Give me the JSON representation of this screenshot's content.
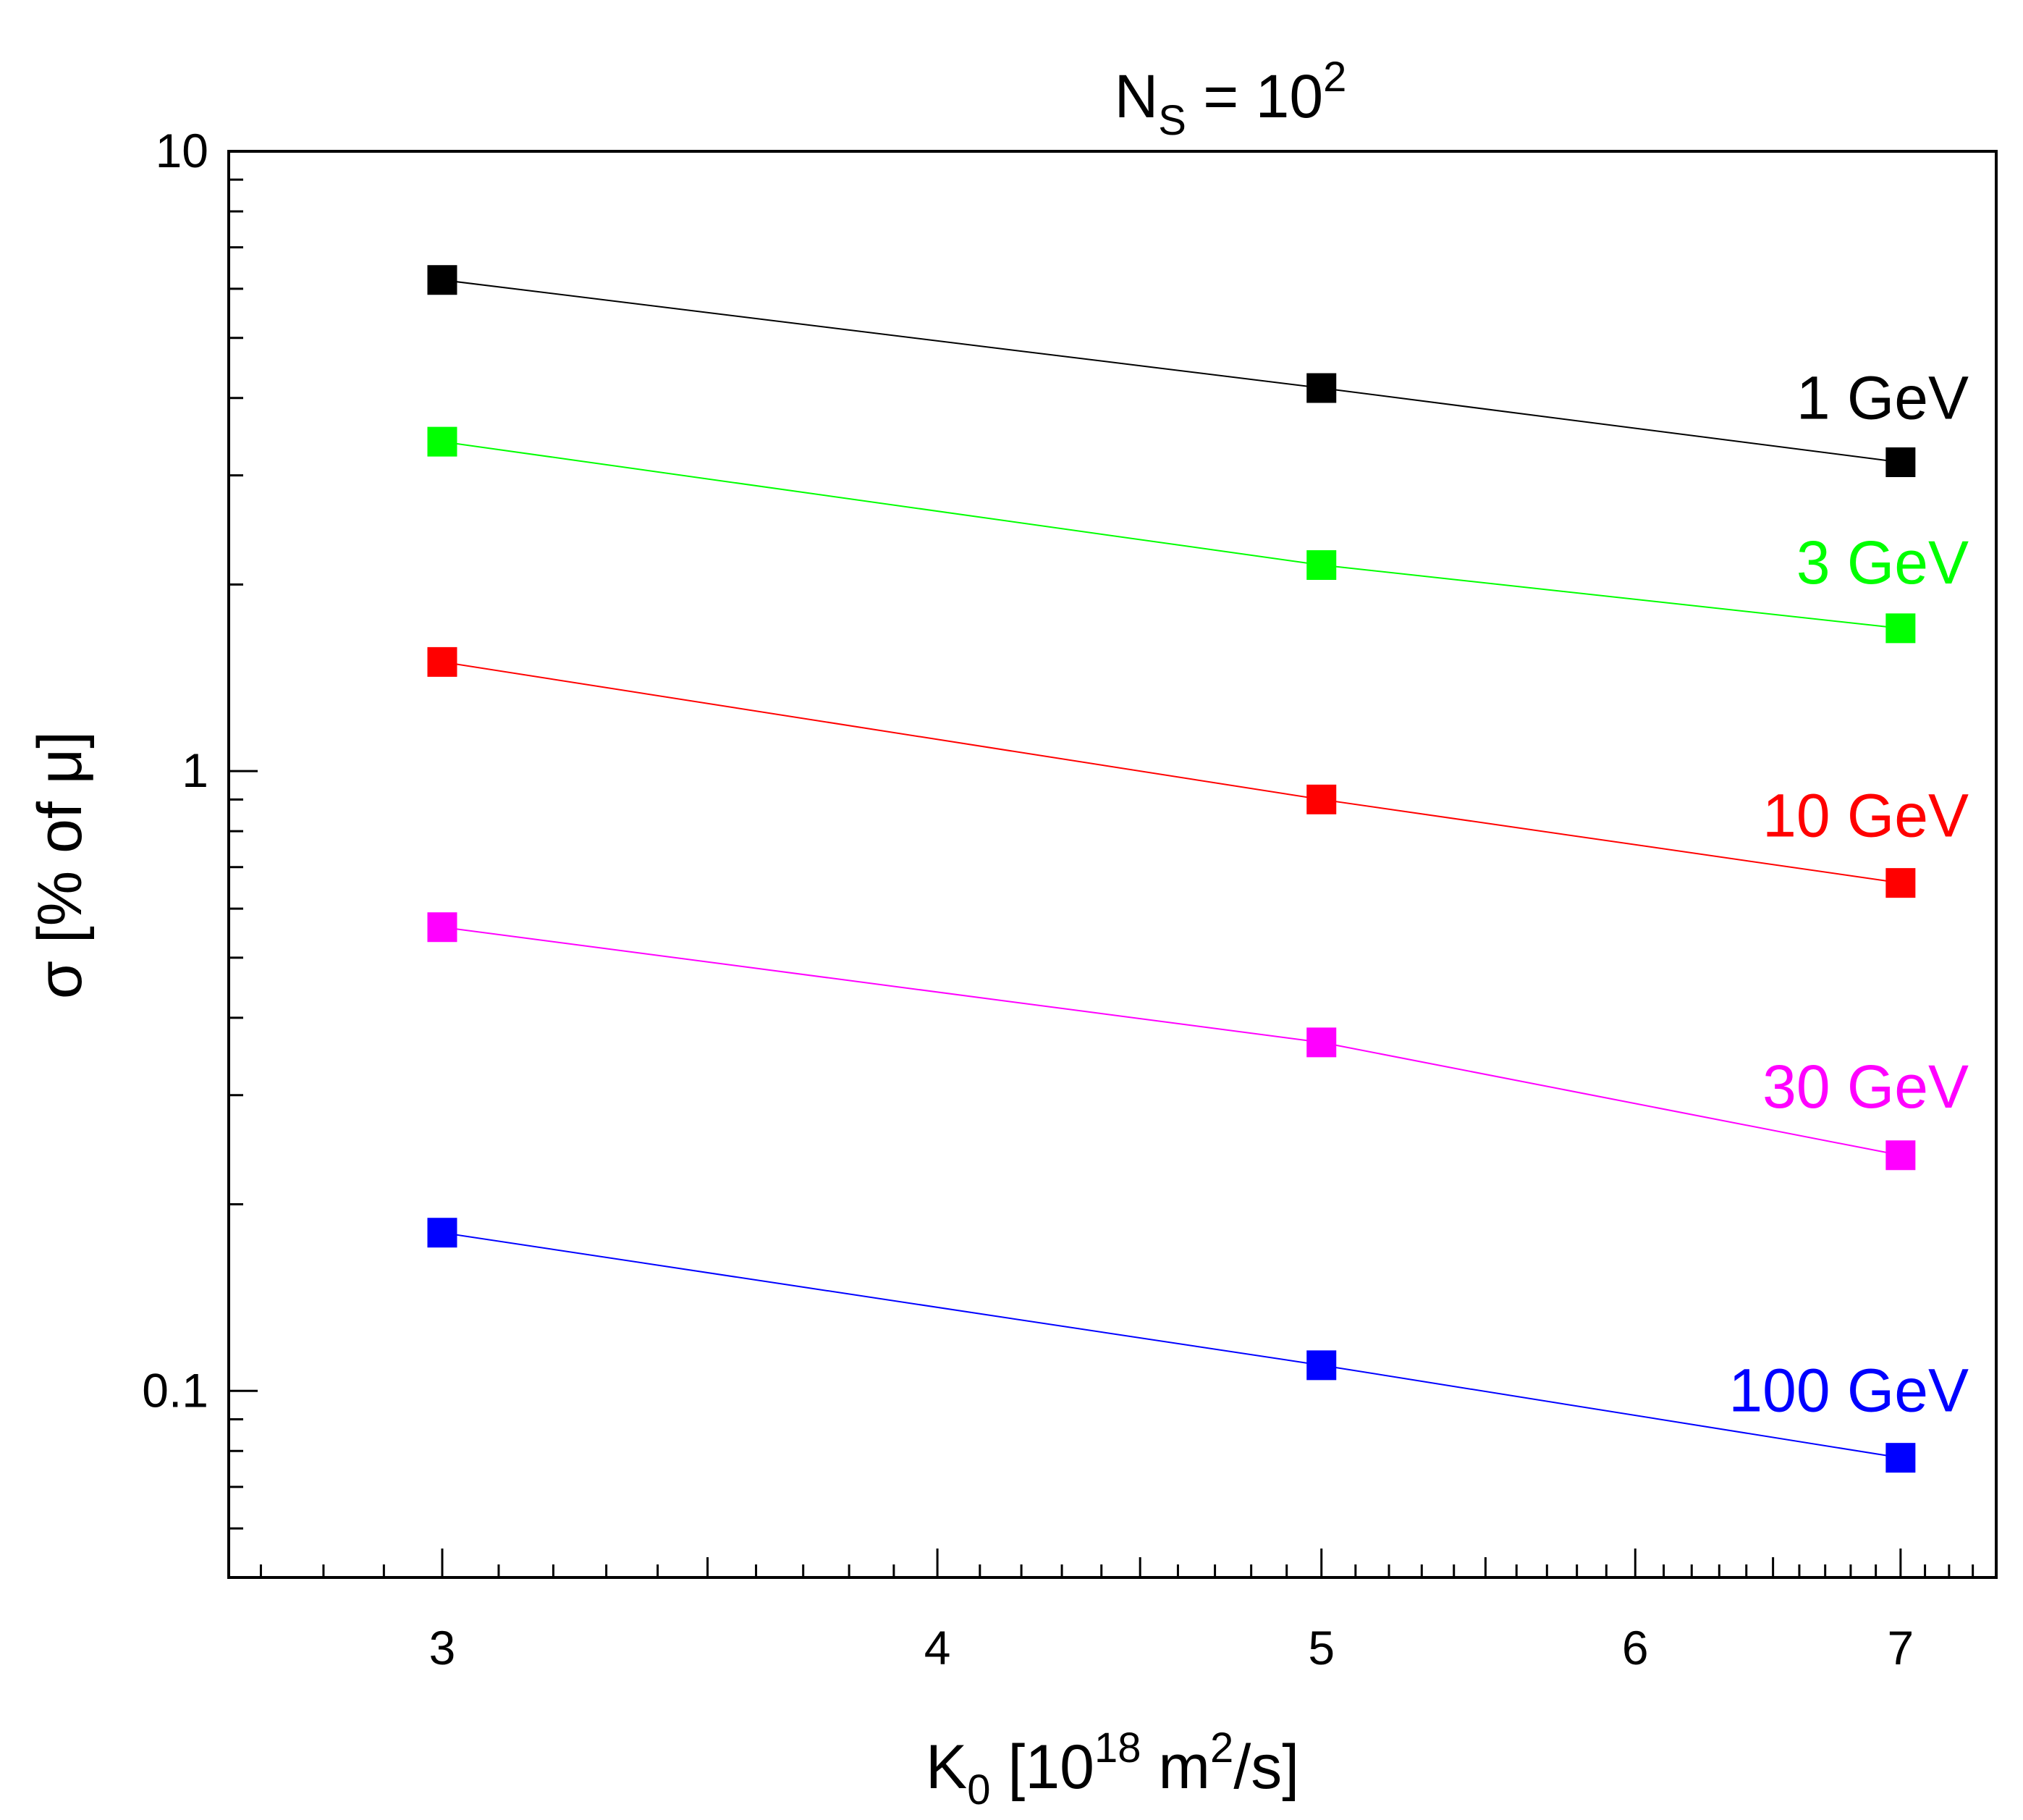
{
  "chart_data": {
    "type": "line",
    "title": {
      "base": "N",
      "sub": "S",
      "mid": " = 10",
      "sup": "2"
    },
    "xlabel": {
      "base": "K",
      "sub": "0",
      "mid": " [10",
      "sup": "18",
      "tail_a": " m",
      "sup2": "2",
      "tail_b": "/s]"
    },
    "ylabel": "σ [% of μ]",
    "xscale": "log",
    "yscale": "log",
    "xlim": [
      2.65,
      7.4
    ],
    "ylim": [
      0.05,
      10
    ],
    "xticks": [
      3,
      4,
      5,
      6,
      7
    ],
    "xtick_labels": [
      "3",
      "4",
      "5",
      "6",
      "7"
    ],
    "yticks": [
      0.1,
      1,
      10
    ],
    "ytick_labels": [
      "0.1",
      "1",
      "10"
    ],
    "x": [
      3,
      5,
      7
    ],
    "series": [
      {
        "name": "1 GeV",
        "color": "#000000",
        "values": [
          6.2,
          4.15,
          3.15
        ]
      },
      {
        "name": "3 GeV",
        "color": "#00ff00",
        "values": [
          3.4,
          2.15,
          1.7
        ]
      },
      {
        "name": "10 GeV",
        "color": "#ff0000",
        "values": [
          1.5,
          0.9,
          0.66
        ]
      },
      {
        "name": "30 GeV",
        "color": "#ff00ff",
        "values": [
          0.56,
          0.365,
          0.24
        ]
      },
      {
        "name": "100 GeV",
        "color": "#0000ff",
        "values": [
          0.18,
          0.11,
          0.078
        ]
      }
    ]
  }
}
